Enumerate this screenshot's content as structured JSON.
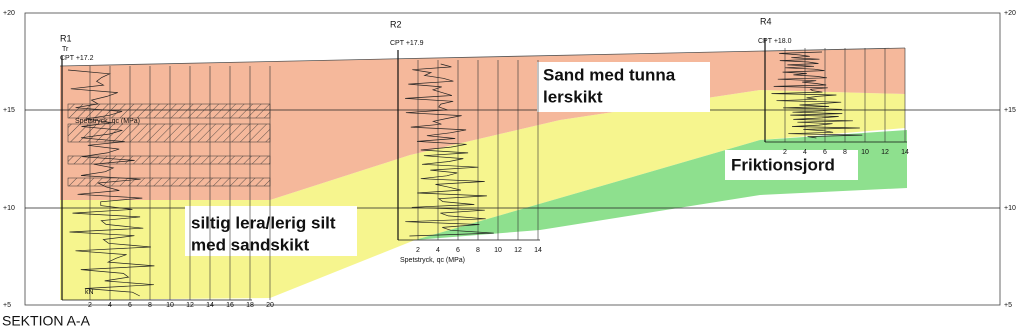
{
  "section_title": "SEKTION A-A",
  "elevations": [
    "+20",
    "+15",
    "+10",
    "+5"
  ],
  "boreholes": [
    {
      "name": "R1",
      "note": "Tr",
      "cpt": "CPT +17.2",
      "unit": "kN",
      "inner_label": "Spetstryck, qc (MPa)",
      "scale": [
        2,
        4,
        6,
        8,
        10,
        12,
        14,
        16,
        18,
        20
      ]
    },
    {
      "name": "R2",
      "cpt": "CPT +17.9",
      "scale_label": "Spetstryck, qc (MPa)",
      "scale": [
        2,
        4,
        6,
        8,
        10,
        12,
        14
      ]
    },
    {
      "name": "R4",
      "cpt": "CPT +18.0",
      "scale": [
        2,
        4,
        6,
        8,
        10,
        12,
        14
      ]
    }
  ],
  "layers": {
    "sand": [
      "Sand med tunna",
      "lerskikt"
    ],
    "silt": [
      "siltig lera/lerig silt",
      "med sandskikt"
    ],
    "friction": [
      "Friktionsjord"
    ]
  }
}
